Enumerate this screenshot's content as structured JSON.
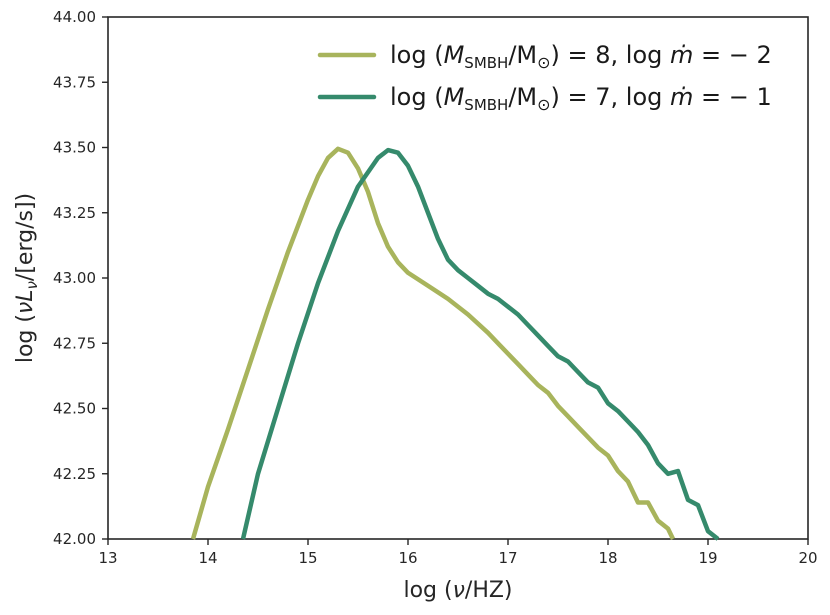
{
  "chart_data": {
    "type": "line",
    "xlabel": "log (ν/HZ)",
    "ylabel": "log (νL_ν/[erg/s])",
    "xlim": [
      13,
      20
    ],
    "ylim": [
      42.0,
      44.0
    ],
    "xticks": [
      "13",
      "14",
      "15",
      "16",
      "17",
      "18",
      "19",
      "20"
    ],
    "yticks": [
      "42.00",
      "42.25",
      "42.50",
      "42.75",
      "43.00",
      "43.25",
      "43.50",
      "43.75",
      "44.00"
    ],
    "xtick_values": [
      13,
      14,
      15,
      16,
      17,
      18,
      19,
      20
    ],
    "ytick_values": [
      42.0,
      42.25,
      42.5,
      42.75,
      43.0,
      43.25,
      43.5,
      43.75,
      44.0
    ],
    "grid": false,
    "legend_position": "top-right",
    "series": [
      {
        "name": "log (M_SMBH/M_⊙) = 8, log ṁ = −2",
        "color": "#a8b45c",
        "x": [
          13.85,
          14.0,
          14.2,
          14.4,
          14.6,
          14.8,
          14.9,
          15.0,
          15.1,
          15.2,
          15.3,
          15.4,
          15.5,
          15.6,
          15.7,
          15.8,
          15.9,
          16.0,
          16.2,
          16.4,
          16.6,
          16.8,
          16.9,
          17.0,
          17.1,
          17.2,
          17.3,
          17.4,
          17.5,
          17.6,
          17.7,
          17.8,
          17.9,
          18.0,
          18.1,
          18.2,
          18.3,
          18.4,
          18.5,
          18.6,
          18.65
        ],
        "y": [
          42.0,
          42.2,
          42.42,
          42.65,
          42.88,
          43.1,
          43.2,
          43.3,
          43.39,
          43.46,
          43.495,
          43.48,
          43.42,
          43.33,
          43.21,
          43.12,
          43.06,
          43.02,
          42.97,
          42.92,
          42.86,
          42.79,
          42.75,
          42.71,
          42.67,
          42.63,
          42.59,
          42.56,
          42.51,
          42.47,
          42.43,
          42.39,
          42.35,
          42.32,
          42.26,
          42.22,
          42.14,
          42.14,
          42.07,
          42.04,
          42.0
        ]
      },
      {
        "name": "log (M_SMBH/M_⊙) = 7, log ṁ = −1",
        "color": "#358a6c",
        "x": [
          14.35,
          14.5,
          14.7,
          14.9,
          15.1,
          15.3,
          15.5,
          15.7,
          15.8,
          15.9,
          16.0,
          16.1,
          16.2,
          16.3,
          16.4,
          16.5,
          16.6,
          16.7,
          16.8,
          16.9,
          17.0,
          17.1,
          17.2,
          17.3,
          17.4,
          17.5,
          17.6,
          17.7,
          17.8,
          17.9,
          18.0,
          18.1,
          18.2,
          18.3,
          18.4,
          18.5,
          18.6,
          18.7,
          18.8,
          18.9,
          19.0,
          19.1
        ],
        "y": [
          42.0,
          42.25,
          42.5,
          42.75,
          42.98,
          43.18,
          43.35,
          43.46,
          43.49,
          43.48,
          43.43,
          43.35,
          43.25,
          43.15,
          43.07,
          43.03,
          43.0,
          42.97,
          42.94,
          42.92,
          42.89,
          42.86,
          42.82,
          42.78,
          42.74,
          42.7,
          42.68,
          42.64,
          42.6,
          42.58,
          42.52,
          42.49,
          42.45,
          42.41,
          42.36,
          42.29,
          42.25,
          42.26,
          42.15,
          42.13,
          42.03,
          42.0
        ]
      }
    ]
  }
}
